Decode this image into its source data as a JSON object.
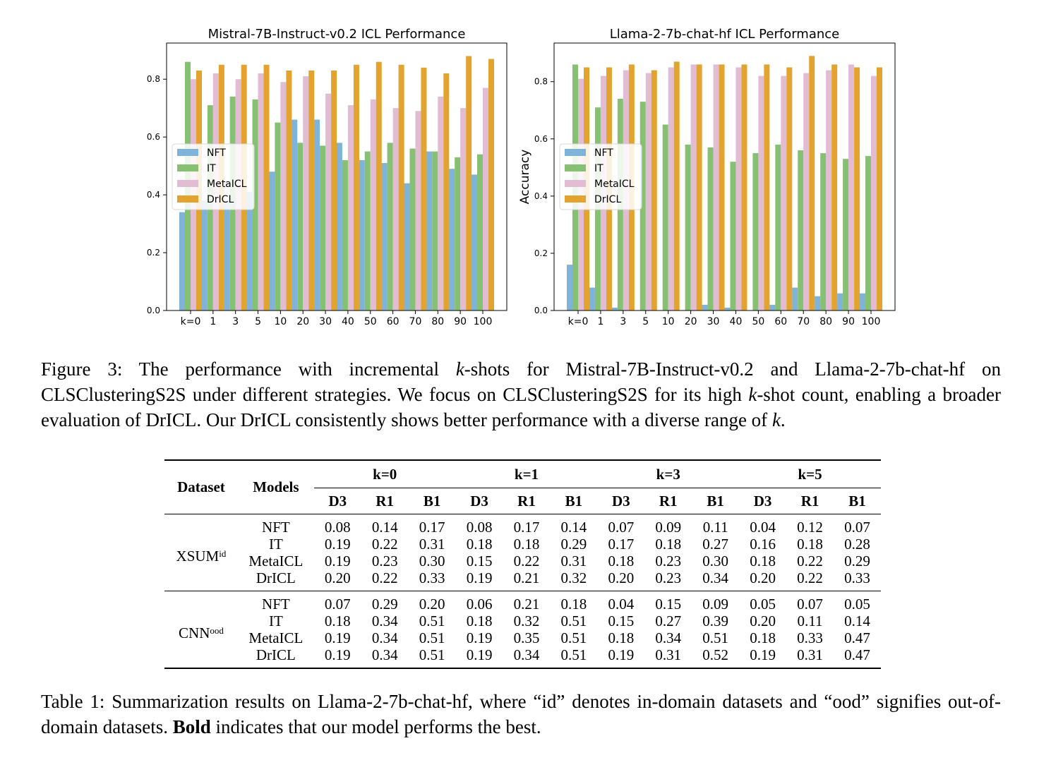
{
  "chart_data": [
    {
      "type": "bar",
      "title": "Mistral-7B-Instruct-v0.2 ICL Performance",
      "xlabel": "",
      "ylabel": "",
      "categories": [
        "k=0",
        "1",
        "3",
        "5",
        "10",
        "20",
        "30",
        "40",
        "50",
        "60",
        "70",
        "80",
        "90",
        "100"
      ],
      "ylim": [
        0,
        0.925
      ],
      "yticks": [
        "0.0",
        "0.2",
        "0.4",
        "0.6",
        "0.8"
      ],
      "legend_position": "center-left",
      "series": [
        {
          "name": "NFT",
          "color": "#7fb3d9",
          "values": [
            0.34,
            0.38,
            0.38,
            0.41,
            0.48,
            0.66,
            0.66,
            0.58,
            0.52,
            0.51,
            0.44,
            0.55,
            0.49,
            0.47
          ]
        },
        {
          "name": "IT",
          "color": "#86c072",
          "values": [
            0.86,
            0.71,
            0.74,
            0.73,
            0.65,
            0.58,
            0.57,
            0.52,
            0.55,
            0.58,
            0.56,
            0.55,
            0.53,
            0.54
          ]
        },
        {
          "name": "MetaICL",
          "color": "#e2bcd3",
          "values": [
            0.8,
            0.82,
            0.8,
            0.82,
            0.79,
            0.81,
            0.75,
            0.71,
            0.73,
            0.7,
            0.69,
            0.74,
            0.7,
            0.77
          ]
        },
        {
          "name": "DrICL",
          "color": "#e3a32f",
          "values": [
            0.83,
            0.85,
            0.85,
            0.85,
            0.83,
            0.83,
            0.83,
            0.85,
            0.86,
            0.85,
            0.84,
            0.82,
            0.88,
            0.87
          ]
        }
      ]
    },
    {
      "type": "bar",
      "title": "Llama-2-7b-chat-hf ICL Performance",
      "xlabel": "",
      "ylabel": "Accuracy",
      "categories": [
        "k=0",
        "1",
        "3",
        "5",
        "10",
        "20",
        "30",
        "40",
        "50",
        "60",
        "70",
        "80",
        "90",
        "100"
      ],
      "ylim": [
        0,
        0.935
      ],
      "yticks": [
        "0.0",
        "0.2",
        "0.4",
        "0.6",
        "0.8"
      ],
      "legend_position": "center-left",
      "series": [
        {
          "name": "NFT",
          "color": "#7fb3d9",
          "values": [
            0.16,
            0.08,
            0.01,
            0.0,
            0.0,
            0.0,
            0.02,
            0.01,
            0.0,
            0.02,
            0.08,
            0.05,
            0.06,
            0.06
          ]
        },
        {
          "name": "IT",
          "color": "#86c072",
          "values": [
            0.86,
            0.71,
            0.74,
            0.73,
            0.65,
            0.58,
            0.57,
            0.52,
            0.55,
            0.58,
            0.56,
            0.55,
            0.53,
            0.54
          ]
        },
        {
          "name": "MetaICL",
          "color": "#e2bcd3",
          "values": [
            0.81,
            0.82,
            0.84,
            0.83,
            0.85,
            0.86,
            0.86,
            0.85,
            0.82,
            0.82,
            0.83,
            0.84,
            0.86,
            0.82
          ]
        },
        {
          "name": "DrICL",
          "color": "#e3a32f",
          "values": [
            0.85,
            0.85,
            0.86,
            0.84,
            0.87,
            0.86,
            0.86,
            0.86,
            0.86,
            0.85,
            0.89,
            0.86,
            0.85,
            0.85
          ]
        }
      ]
    }
  ],
  "figure_caption": {
    "label": "Figure 3:",
    "text_1": "The performance with incremental ",
    "k1": "k",
    "text_2": "-shots for Mistral-7B-Instruct-v0.2 and Llama-2-7b-chat-hf on CLSClusteringS2S under different strategies. We focus on CLSClusteringS2S for its high ",
    "k2": "k",
    "text_3": "-shot count, enabling a broader evaluation of DrICL. Our DrICL consistently shows better performance with a diverse range of ",
    "k3": "k",
    "text_4": "."
  },
  "table": {
    "header_dataset": "Dataset",
    "header_models": "Models",
    "k_groups": [
      "k=0",
      "k=1",
      "k=3",
      "k=5"
    ],
    "metrics": [
      "D3",
      "R1",
      "B1",
      "D3",
      "R1",
      "B1",
      "D3",
      "R1",
      "B1",
      "D3",
      "R1",
      "B1"
    ],
    "groups": [
      {
        "dataset": "XSUM",
        "superscript": "id",
        "rows": [
          {
            "model": "NFT",
            "values": [
              "0.08",
              "0.14",
              "0.17",
              "0.08",
              "0.17",
              "0.14",
              "0.07",
              "0.09",
              "0.11",
              "0.04",
              "0.12",
              "0.07"
            ],
            "bold": []
          },
          {
            "model": "IT",
            "values": [
              "0.19",
              "0.22",
              "0.31",
              "0.18",
              "0.18",
              "0.29",
              "0.17",
              "0.18",
              "0.27",
              "0.16",
              "0.18",
              "0.28"
            ],
            "bold": []
          },
          {
            "model": "MetaICL",
            "values": [
              "0.19",
              "0.23",
              "0.30",
              "0.15",
              "0.22",
              "0.31",
              "0.18",
              "0.23",
              "0.30",
              "0.18",
              "0.22",
              "0.29"
            ],
            "bold": []
          },
          {
            "model": "DrICL",
            "values": [
              "0.20",
              "0.22",
              "0.33",
              "0.19",
              "0.21",
              "0.32",
              "0.20",
              "0.23",
              "0.34",
              "0.20",
              "0.22",
              "0.33"
            ],
            "bold": [
              0,
              2,
              3,
              5,
              6,
              7,
              8,
              9,
              10,
              11
            ]
          }
        ]
      },
      {
        "dataset": "CNN",
        "superscript": "ood",
        "rows": [
          {
            "model": "NFT",
            "values": [
              "0.07",
              "0.29",
              "0.20",
              "0.06",
              "0.21",
              "0.18",
              "0.04",
              "0.15",
              "0.09",
              "0.05",
              "0.07",
              "0.05"
            ],
            "bold": []
          },
          {
            "model": "IT",
            "values": [
              "0.18",
              "0.34",
              "0.51",
              "0.18",
              "0.32",
              "0.51",
              "0.15",
              "0.27",
              "0.39",
              "0.20",
              "0.11",
              "0.14"
            ],
            "bold": []
          },
          {
            "model": "MetaICL",
            "values": [
              "0.19",
              "0.34",
              "0.51",
              "0.19",
              "0.35",
              "0.51",
              "0.18",
              "0.34",
              "0.51",
              "0.18",
              "0.33",
              "0.47"
            ],
            "bold": []
          },
          {
            "model": "DrICL",
            "values": [
              "0.19",
              "0.34",
              "0.51",
              "0.19",
              "0.34",
              "0.51",
              "0.19",
              "0.31",
              "0.52",
              "0.19",
              "0.31",
              "0.47"
            ],
            "bold": [
              0,
              1,
              2,
              3,
              5,
              6,
              8,
              11
            ]
          }
        ]
      }
    ]
  },
  "table_caption": {
    "label": "Table 1:",
    "text_1": "Summarization results on Llama-2-7b-chat-hf, where “id” denotes in-domain datasets and “ood” signifies out-of-domain datasets. ",
    "bold_word": "Bold",
    "text_2": " indicates that our model performs the best."
  }
}
